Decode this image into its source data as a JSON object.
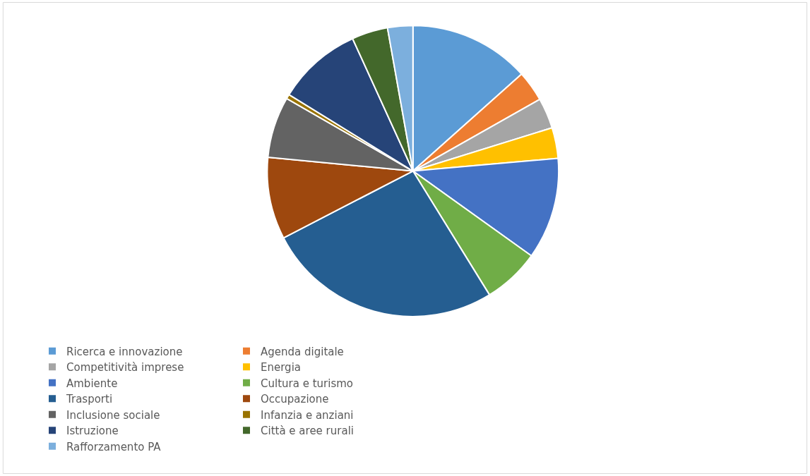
{
  "chart_data": {
    "type": "pie",
    "categories": [
      "Ricerca e innovazione",
      "Agenda digitale",
      "Competitività imprese",
      "Energia",
      "Ambiente",
      "Cultura e turismo",
      "Trasporti",
      "Occupazione",
      "Inclusione sociale",
      "Infanzia e anziani",
      "Istruzione",
      "Città e aree rurali",
      "Rafforzamento PA"
    ],
    "values": [
      13.4,
      3.4,
      3.4,
      3.4,
      11.3,
      6.3,
      26.2,
      9.1,
      6.8,
      0.5,
      9.4,
      4.0,
      2.8
    ],
    "colors": [
      "#5b9bd5",
      "#ed7d31",
      "#a5a5a5",
      "#ffc000",
      "#4472c4",
      "#70ad47",
      "#255e91",
      "#9e480e",
      "#636363",
      "#997300",
      "#264478",
      "#43682b",
      "#7cafdd"
    ],
    "legend": "bottom"
  }
}
